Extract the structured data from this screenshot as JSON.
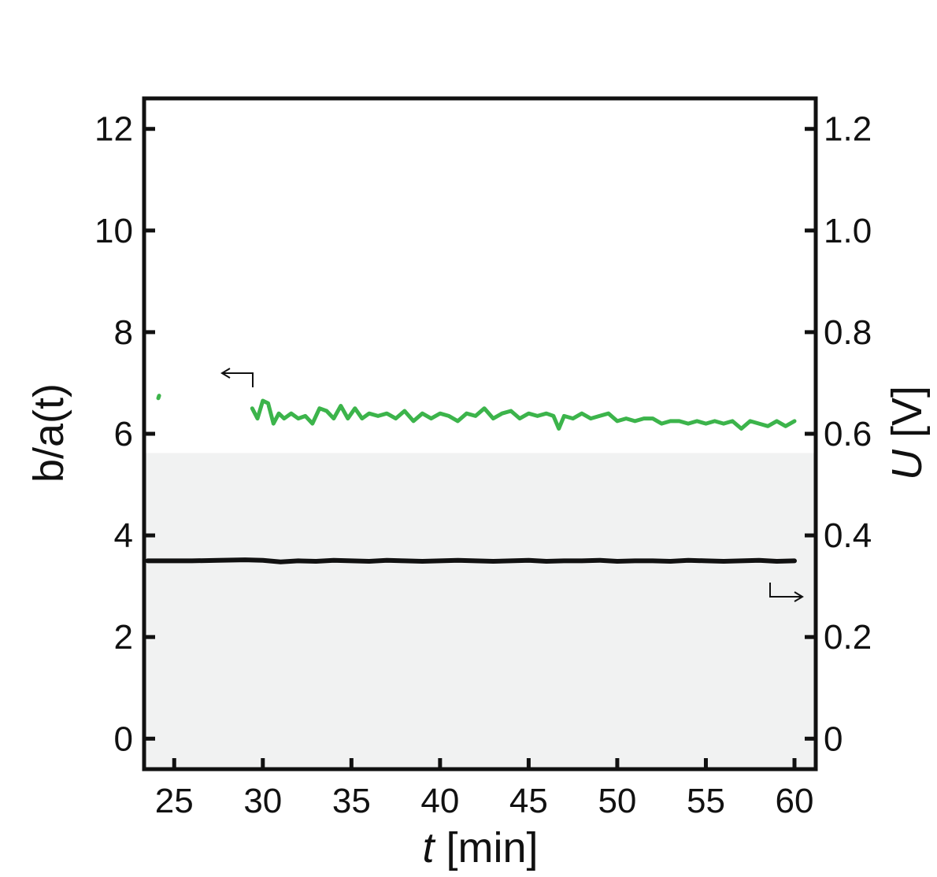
{
  "chart_data": {
    "type": "line",
    "title": "",
    "x_axis": {
      "label_var": "t",
      "label_unit": " [min]",
      "range": [
        23.3,
        61.2
      ],
      "ticks": [
        25,
        30,
        35,
        40,
        45,
        50,
        55,
        60
      ],
      "tick_labels": [
        "25",
        "30",
        "35",
        "40",
        "45",
        "50",
        "55",
        "60"
      ]
    },
    "y_left": {
      "label_var": "b/a(t)",
      "range": [
        -0.6,
        12.6
      ],
      "ticks": [
        0,
        2,
        4,
        6,
        8,
        10,
        12
      ],
      "tick_labels": [
        "0",
        "2",
        "4",
        "6",
        "8",
        "10",
        "12"
      ]
    },
    "y_right": {
      "label_var": "U",
      "label_unit": " [V]",
      "range": [
        -0.06,
        1.26
      ],
      "ticks": [
        0,
        0.2,
        0.4,
        0.6,
        0.8,
        1.0,
        1.2
      ],
      "tick_labels": [
        "0",
        "0.2",
        "0.4",
        "0.6",
        "0.8",
        "1.0",
        "1.2"
      ]
    },
    "shaded_region": {
      "y_left_from": -0.6,
      "y_left_to": 5.62,
      "color": "#f1f2f2"
    },
    "grid": false,
    "legend": "none",
    "series": [
      {
        "axis": "left",
        "color": "#3cb44b",
        "x": [
          29.4,
          29.7,
          30.0,
          30.3,
          30.6,
          30.9,
          31.2,
          31.6,
          32.0,
          32.4,
          32.8,
          33.2,
          33.6,
          34.0,
          34.4,
          34.8,
          35.2,
          35.6,
          36.0,
          36.5,
          37.0,
          37.5,
          38.0,
          38.5,
          39.0,
          39.5,
          40.0,
          40.5,
          41.0,
          41.5,
          42.0,
          42.5,
          43.0,
          43.5,
          44.0,
          44.5,
          45.0,
          45.5,
          46.0,
          46.4,
          46.7,
          47.0,
          47.5,
          48.0,
          48.5,
          49.0,
          49.5,
          50.0,
          50.5,
          51.0,
          51.5,
          52.0,
          52.5,
          53.0,
          53.5,
          54.0,
          54.5,
          55.0,
          55.5,
          56.0,
          56.5,
          57.0,
          57.5,
          58.0,
          58.5,
          59.0,
          59.5,
          60.0
        ],
        "values": [
          6.5,
          6.3,
          6.65,
          6.6,
          6.2,
          6.4,
          6.3,
          6.4,
          6.3,
          6.35,
          6.2,
          6.5,
          6.45,
          6.3,
          6.55,
          6.3,
          6.5,
          6.3,
          6.4,
          6.35,
          6.4,
          6.3,
          6.45,
          6.25,
          6.4,
          6.3,
          6.4,
          6.35,
          6.25,
          6.4,
          6.35,
          6.5,
          6.3,
          6.4,
          6.45,
          6.3,
          6.4,
          6.35,
          6.4,
          6.35,
          6.1,
          6.35,
          6.3,
          6.4,
          6.3,
          6.35,
          6.4,
          6.25,
          6.3,
          6.25,
          6.3,
          6.3,
          6.2,
          6.25,
          6.25,
          6.2,
          6.25,
          6.2,
          6.25,
          6.2,
          6.25,
          6.1,
          6.25,
          6.2,
          6.15,
          6.25,
          6.15,
          6.25
        ]
      },
      {
        "axis": "left",
        "color": "#3cb44b",
        "x": [
          24.1,
          24.15
        ],
        "values": [
          6.7,
          6.75
        ]
      },
      {
        "axis": "right",
        "color": "#111111",
        "x": [
          23.5,
          24.5,
          26.0,
          27.5,
          29.0,
          30.0,
          31.0,
          32.0,
          33.0,
          34.0,
          35.0,
          36.0,
          37.0,
          38.0,
          39.0,
          40.0,
          41.0,
          42.0,
          43.0,
          44.0,
          45.0,
          46.0,
          47.0,
          48.0,
          49.0,
          50.0,
          51.0,
          52.0,
          53.0,
          54.0,
          55.0,
          56.0,
          57.0,
          58.0,
          59.0,
          60.0
        ],
        "values": [
          0.35,
          0.35,
          0.35,
          0.351,
          0.352,
          0.351,
          0.348,
          0.35,
          0.349,
          0.351,
          0.35,
          0.349,
          0.351,
          0.35,
          0.349,
          0.35,
          0.351,
          0.35,
          0.349,
          0.35,
          0.351,
          0.349,
          0.35,
          0.35,
          0.351,
          0.349,
          0.35,
          0.35,
          0.349,
          0.351,
          0.35,
          0.349,
          0.35,
          0.351,
          0.349,
          0.35
        ]
      }
    ],
    "annotations": [
      {
        "name": "arrow-left-axis",
        "direction": "left"
      },
      {
        "name": "arrow-right-axis",
        "direction": "right"
      }
    ]
  }
}
